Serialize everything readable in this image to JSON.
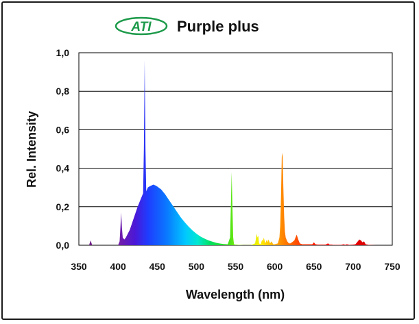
{
  "logo": {
    "text": "ATI",
    "color": "#1d9a4a"
  },
  "chart_data": {
    "type": "area",
    "title": "Purple plus",
    "xlabel": "Wavelength (nm)",
    "ylabel": "Rel. Intensity",
    "xlim": [
      350,
      750
    ],
    "ylim": [
      0,
      1.0
    ],
    "x_ticks": [
      "350",
      "400",
      "450",
      "500",
      "550",
      "600",
      "650",
      "700",
      "750"
    ],
    "y_ticks": [
      "0,0",
      "0,2",
      "0,4",
      "0,6",
      "0,8",
      "1,0"
    ],
    "y_tick_values": [
      0,
      0.2,
      0.4,
      0.6,
      0.8,
      1.0
    ],
    "grid": "horizontal",
    "color_scale": "wavelength spectrum (violet to red)",
    "series": [
      {
        "x": [
          350,
          360,
          363,
          365,
          367,
          370,
          380,
          390,
          400,
          402,
          403,
          404,
          405,
          406,
          408,
          410,
          415,
          420,
          425,
          430,
          432,
          433,
          434,
          435,
          436,
          437,
          438,
          440,
          445,
          448,
          450,
          455,
          460,
          465,
          470,
          475,
          480,
          485,
          490,
          495,
          500,
          505,
          510,
          515,
          520,
          525,
          530,
          535,
          540,
          543,
          544,
          545,
          546,
          547,
          548,
          550,
          555,
          560,
          565,
          570,
          575,
          577,
          578,
          579,
          580,
          582,
          584,
          585,
          586,
          588,
          590,
          591,
          592,
          594,
          596,
          598,
          600,
          604,
          606,
          607,
          608,
          609,
          610,
          611,
          612,
          613,
          614,
          616,
          618,
          620,
          622,
          625,
          627,
          628,
          630,
          632,
          635,
          640,
          648,
          650,
          652,
          655,
          660,
          665,
          668,
          670,
          672,
          675,
          680,
          685,
          688,
          690,
          692,
          695,
          700,
          703,
          705,
          707,
          708,
          710,
          712,
          714,
          716,
          720,
          730,
          740,
          750
        ],
        "values": [
          0,
          0,
          0,
          0.025,
          0,
          0,
          0,
          0,
          0,
          0.02,
          0.09,
          0.17,
          0.09,
          0.04,
          0.03,
          0.04,
          0.08,
          0.14,
          0.2,
          0.25,
          0.27,
          0.5,
          0.96,
          0.5,
          0.28,
          0.29,
          0.3,
          0.305,
          0.315,
          0.31,
          0.305,
          0.29,
          0.265,
          0.235,
          0.205,
          0.175,
          0.145,
          0.12,
          0.097,
          0.077,
          0.06,
          0.046,
          0.035,
          0.026,
          0.019,
          0.013,
          0.009,
          0.006,
          0.005,
          0.04,
          0.2,
          0.38,
          0.2,
          0.04,
          0.005,
          0.003,
          0.002,
          0.001,
          0.001,
          0.001,
          0.01,
          0.06,
          0.04,
          0.05,
          0.01,
          0.005,
          0.03,
          0.02,
          0.04,
          0.01,
          0.03,
          0.015,
          0.03,
          0.01,
          0.02,
          0.005,
          0.005,
          0.01,
          0.04,
          0.1,
          0.25,
          0.46,
          0.48,
          0.3,
          0.15,
          0.07,
          0.04,
          0.02,
          0.01,
          0.01,
          0.015,
          0.025,
          0.045,
          0.055,
          0.03,
          0.01,
          0.005,
          0.005,
          0.005,
          0.015,
          0.005,
          0.003,
          0.003,
          0.003,
          0.01,
          0.003,
          0.003,
          0.002,
          0.002,
          0.002,
          0.005,
          0.002,
          0.005,
          0.002,
          0.003,
          0.005,
          0.015,
          0.025,
          0.03,
          0.025,
          0.015,
          0.02,
          0.005,
          0.002,
          0,
          0,
          0
        ]
      }
    ]
  }
}
